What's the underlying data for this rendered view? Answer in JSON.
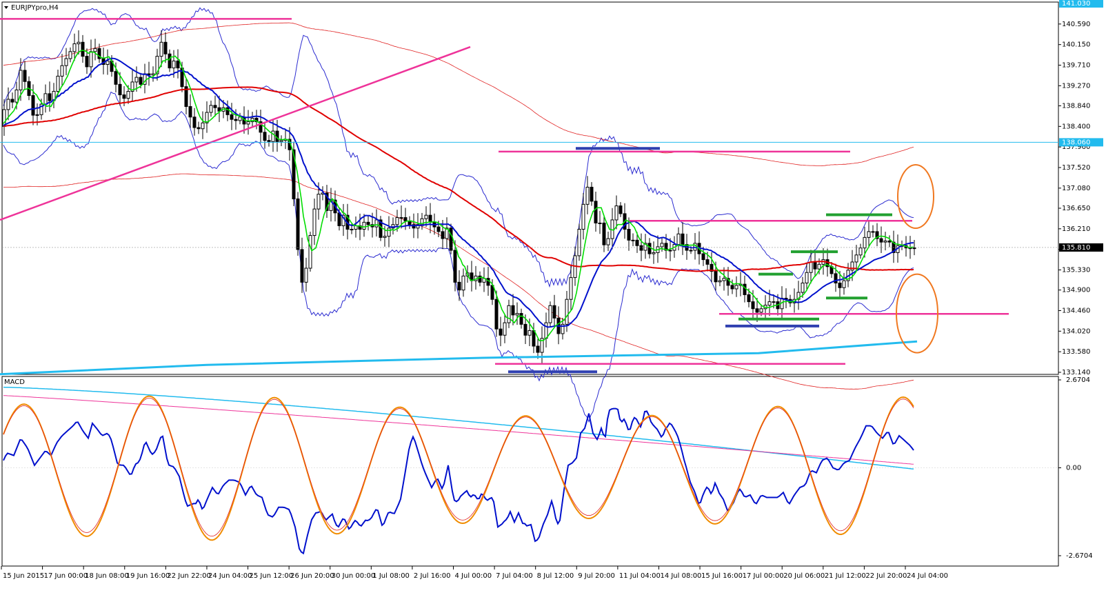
{
  "window": {
    "title": "EURJPYpro,H4"
  },
  "macd": {
    "label": "MACD"
  },
  "colors": {
    "bull_candle": "#ffffff",
    "bear_candle": "#000000",
    "fast_ma": "#00dd00",
    "mid_ma": "#0010cc",
    "slow_ma": "#e00000",
    "bollinger": "#2a2ad0",
    "envelope": "#e02020",
    "support_line": "#22bbee",
    "trend_line": "#ee3399",
    "oscillator": "#f08c00",
    "macd_main": "#0010cc"
  },
  "chart_data": [
    {
      "type": "candlestick",
      "symbol": "EURJPYpro",
      "timeframe": "H4",
      "ylim": [
        133.14,
        141.03
      ],
      "y_ticks": [
        "140.590",
        "140.150",
        "139.710",
        "139.270",
        "138.840",
        "138.400",
        "137.960",
        "137.520",
        "137.080",
        "136.650",
        "136.210",
        "135.770",
        "135.330",
        "134.900",
        "134.460",
        "134.020",
        "133.580",
        "133.140"
      ],
      "price_tags": [
        {
          "label": "141.030",
          "value": 141.03,
          "color": "#22bbee"
        },
        {
          "label": "138.060",
          "value": 138.06,
          "color": "#22bbee"
        },
        {
          "label": "135.810",
          "value": 135.81,
          "color": "#000000"
        }
      ],
      "x_ticks": [
        "15 Jun 2015",
        "17 Jun 00:00",
        "18 Jun 08:00",
        "19 Jun 16:00",
        "22 Jun 22:00",
        "24 Jun 04:00",
        "25 Jun 12:00",
        "26 Jun 20:00",
        "30 Jun 00:00",
        "1 Jul 08:00",
        "2 Jul 16:00",
        "4 Jul 00:00",
        "7 Jul 04:00",
        "8 Jul 12:00",
        "9 Jul 20:00",
        "11 Jul 04:00",
        "14 Jul 08:00",
        "15 Jul 16:00",
        "17 Jul 00:00",
        "20 Jul 06:00",
        "21 Jul 12:00",
        "22 Jul 20:00",
        "24 Jul 04:00"
      ],
      "close_path": [
        [
          0,
          138.4
        ],
        [
          10,
          139.0
        ],
        [
          20,
          138.9
        ],
        [
          30,
          139.6
        ],
        [
          40,
          139.2
        ],
        [
          50,
          138.5
        ],
        [
          58,
          138.8
        ],
        [
          66,
          139.1
        ],
        [
          74,
          138.9
        ],
        [
          82,
          139.4
        ],
        [
          90,
          139.7
        ],
        [
          98,
          139.9
        ],
        [
          106,
          140.1
        ],
        [
          112,
          140.3
        ],
        [
          120,
          139.9
        ],
        [
          128,
          139.6
        ],
        [
          134,
          140.2
        ],
        [
          140,
          140.0
        ],
        [
          148,
          139.7
        ],
        [
          156,
          139.8
        ],
        [
          164,
          139.5
        ],
        [
          172,
          139.1
        ],
        [
          180,
          139.0
        ],
        [
          188,
          139.2
        ],
        [
          196,
          139.5
        ],
        [
          204,
          139.3
        ],
        [
          212,
          139.6
        ],
        [
          220,
          139.4
        ],
        [
          228,
          139.9
        ],
        [
          236,
          140.3
        ],
        [
          244,
          139.6
        ],
        [
          252,
          139.8
        ],
        [
          260,
          139.6
        ],
        [
          268,
          138.9
        ],
        [
          276,
          138.6
        ],
        [
          284,
          138.3
        ],
        [
          292,
          138.4
        ],
        [
          300,
          138.7
        ],
        [
          308,
          138.9
        ],
        [
          316,
          138.7
        ],
        [
          324,
          138.8
        ],
        [
          332,
          138.6
        ],
        [
          340,
          138.5
        ],
        [
          348,
          138.6
        ],
        [
          356,
          138.4
        ],
        [
          364,
          138.6
        ],
        [
          372,
          138.5
        ],
        [
          380,
          138.2
        ],
        [
          388,
          138.0
        ],
        [
          396,
          138.3
        ],
        [
          404,
          138.0
        ],
        [
          412,
          138.2
        ],
        [
          420,
          137.9
        ],
        [
          428,
          136.5
        ],
        [
          434,
          135.4
        ],
        [
          440,
          134.9
        ],
        [
          446,
          135.6
        ],
        [
          452,
          136.3
        ],
        [
          458,
          136.8
        ],
        [
          466,
          137.1
        ],
        [
          474,
          136.6
        ],
        [
          482,
          136.9
        ],
        [
          490,
          136.2
        ],
        [
          498,
          136.5
        ],
        [
          506,
          136.1
        ],
        [
          514,
          136.3
        ],
        [
          522,
          136.2
        ],
        [
          530,
          136.4
        ],
        [
          538,
          136.2
        ],
        [
          546,
          136.4
        ],
        [
          554,
          135.9
        ],
        [
          562,
          136.2
        ],
        [
          570,
          136.3
        ],
        [
          578,
          136.5
        ],
        [
          586,
          136.4
        ],
        [
          594,
          136.3
        ],
        [
          602,
          136.2
        ],
        [
          610,
          136.4
        ],
        [
          618,
          136.5
        ],
        [
          626,
          136.3
        ],
        [
          634,
          136.2
        ],
        [
          642,
          136.0
        ],
        [
          650,
          136.3
        ],
        [
          658,
          135.2
        ],
        [
          664,
          134.8
        ],
        [
          670,
          135.1
        ],
        [
          676,
          135.4
        ],
        [
          682,
          135.0
        ],
        [
          688,
          135.3
        ],
        [
          694,
          135.0
        ],
        [
          700,
          135.2
        ],
        [
          708,
          135.0
        ],
        [
          716,
          134.6
        ],
        [
          722,
          133.8
        ],
        [
          728,
          134.0
        ],
        [
          734,
          134.3
        ],
        [
          740,
          134.7
        ],
        [
          746,
          134.2
        ],
        [
          752,
          134.5
        ],
        [
          758,
          134.0
        ],
        [
          764,
          133.9
        ],
        [
          770,
          134.1
        ],
        [
          776,
          133.5
        ],
        [
          782,
          133.6
        ],
        [
          788,
          134.0
        ],
        [
          794,
          134.3
        ],
        [
          800,
          134.7
        ],
        [
          806,
          134.1
        ],
        [
          812,
          133.9
        ],
        [
          818,
          134.3
        ],
        [
          824,
          134.9
        ],
        [
          830,
          135.3
        ],
        [
          836,
          135.8
        ],
        [
          842,
          136.4
        ],
        [
          848,
          136.9
        ],
        [
          854,
          137.2
        ],
        [
          860,
          136.6
        ],
        [
          866,
          136.2
        ],
        [
          872,
          136.4
        ],
        [
          878,
          135.6
        ],
        [
          884,
          136.2
        ],
        [
          890,
          136.5
        ],
        [
          896,
          136.8
        ],
        [
          902,
          136.4
        ],
        [
          908,
          136.1
        ],
        [
          914,
          135.9
        ],
        [
          920,
          136.0
        ],
        [
          928,
          135.7
        ],
        [
          936,
          135.9
        ],
        [
          944,
          135.6
        ],
        [
          952,
          135.8
        ],
        [
          960,
          135.9
        ],
        [
          968,
          135.7
        ],
        [
          976,
          135.8
        ],
        [
          984,
          136.1
        ],
        [
          992,
          135.8
        ],
        [
          1000,
          135.7
        ],
        [
          1008,
          135.9
        ],
        [
          1016,
          135.6
        ],
        [
          1024,
          135.5
        ],
        [
          1032,
          135.3
        ],
        [
          1040,
          135.0
        ],
        [
          1048,
          135.2
        ],
        [
          1056,
          135.0
        ],
        [
          1064,
          134.9
        ],
        [
          1072,
          135.1
        ],
        [
          1080,
          134.8
        ],
        [
          1088,
          134.6
        ],
        [
          1096,
          134.4
        ],
        [
          1104,
          134.5
        ],
        [
          1112,
          134.6
        ],
        [
          1120,
          134.7
        ],
        [
          1128,
          134.5
        ],
        [
          1136,
          134.8
        ],
        [
          1144,
          134.6
        ],
        [
          1152,
          134.7
        ],
        [
          1160,
          134.9
        ],
        [
          1168,
          135.2
        ],
        [
          1176,
          135.5
        ],
        [
          1184,
          135.3
        ],
        [
          1192,
          135.6
        ],
        [
          1200,
          135.4
        ],
        [
          1208,
          135.2
        ],
        [
          1216,
          134.9
        ],
        [
          1224,
          135.1
        ],
        [
          1232,
          135.4
        ],
        [
          1240,
          135.6
        ],
        [
          1248,
          135.8
        ],
        [
          1256,
          136.1
        ],
        [
          1264,
          136.2
        ],
        [
          1272,
          136.0
        ],
        [
          1280,
          135.9
        ],
        [
          1288,
          136.0
        ],
        [
          1296,
          135.7
        ],
        [
          1304,
          135.9
        ],
        [
          1312,
          135.8
        ],
        [
          1320,
          135.8
        ]
      ],
      "lines": [
        {
          "name": "trend_line",
          "points": [
            [
              0,
              136.4
            ],
            [
              682,
              140.1
            ]
          ]
        },
        {
          "name": "top_resistance",
          "points": [
            [
              0,
              140.7
            ],
            [
              423,
              140.7
            ]
          ]
        },
        {
          "name": "resistance_137_8",
          "points": [
            [
              723,
              137.86
            ],
            [
              1233,
              137.86
            ]
          ]
        },
        {
          "name": "resistance_136_4",
          "points": [
            [
              913,
              136.38
            ],
            [
              1323,
              136.38
            ]
          ]
        },
        {
          "name": "support_134_4",
          "points": [
            [
              1043,
              134.39
            ],
            [
              1463,
              134.39
            ]
          ]
        },
        {
          "name": "support_133_3",
          "points": [
            [
              718,
              133.32
            ],
            [
              1226,
              133.32
            ]
          ]
        },
        {
          "name": "horizontal_138_06",
          "points": [
            [
              0,
              138.06
            ],
            [
              1535,
              138.06
            ]
          ]
        },
        {
          "name": "long_support",
          "points": [
            [
              0,
              133.1
            ],
            [
              300,
              133.3
            ],
            [
              700,
              133.45
            ],
            [
              1100,
              133.55
            ],
            [
              1330,
              133.8
            ]
          ]
        }
      ],
      "highlights": [
        {
          "kind": "blue",
          "points": [
            [
              835,
              137.93
            ],
            [
              957,
              137.93
            ]
          ]
        },
        {
          "kind": "blue",
          "points": [
            [
              1052,
              134.13
            ],
            [
              1188,
              134.13
            ]
          ]
        },
        {
          "kind": "blue",
          "points": [
            [
              737,
              133.15
            ],
            [
              866,
              133.15
            ]
          ]
        },
        {
          "kind": "green",
          "points": [
            [
              1198,
              136.51
            ],
            [
              1294,
              136.51
            ]
          ]
        },
        {
          "kind": "green",
          "points": [
            [
              1147,
              135.72
            ],
            [
              1215,
              135.72
            ]
          ]
        },
        {
          "kind": "green",
          "points": [
            [
              1100,
              135.24
            ],
            [
              1150,
              135.24
            ]
          ]
        },
        {
          "kind": "green",
          "points": [
            [
              1198,
              134.73
            ],
            [
              1258,
              134.73
            ]
          ]
        },
        {
          "kind": "green",
          "points": [
            [
              1071,
              134.28
            ],
            [
              1188,
              134.28
            ]
          ]
        }
      ],
      "targets": [
        {
          "center": [
            1328,
            136.9
          ],
          "rx": 26,
          "ry": 46
        },
        {
          "center": [
            1330,
            134.4
          ],
          "rx": 30,
          "ry": 57
        }
      ]
    },
    {
      "type": "line",
      "name": "MACD",
      "ylim": [
        -2.6704,
        2.6704
      ],
      "y_ticks": [
        "2.6704",
        "0.00",
        "-2.6704"
      ]
    }
  ]
}
